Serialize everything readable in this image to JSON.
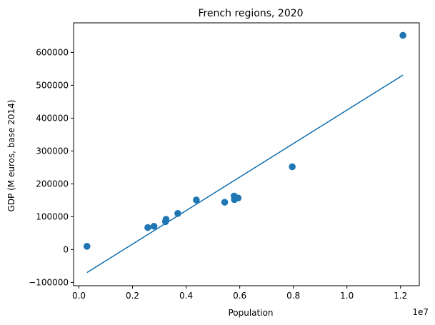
{
  "chart_data": {
    "type": "scatter",
    "title": "French regions, 2020",
    "xlabel": "Population",
    "ylabel": "GDP (M euros, base 2014)",
    "x_offset_label": "1e7",
    "x_scale_multiplier": 10000000,
    "xlim": [
      -200000,
      12700000
    ],
    "ylim": [
      -110000,
      690000
    ],
    "x_ticks": [
      0.0,
      0.2,
      0.4,
      0.6,
      0.8,
      1.0,
      1.2
    ],
    "x_tick_labels": [
      "0.0",
      "0.2",
      "0.4",
      "0.6",
      "0.8",
      "1.0",
      "1.2"
    ],
    "y_ticks": [
      -100000,
      0,
      100000,
      200000,
      300000,
      400000,
      500000,
      600000
    ],
    "y_tick_labels": [
      "−100000",
      "0",
      "100000",
      "200000",
      "300000",
      "400000",
      "500000",
      "600000"
    ],
    "grid": false,
    "series": [
      {
        "kind": "points",
        "color": "#1f77b4",
        "x": [
          300000,
          2570000,
          2800000,
          3230000,
          3250000,
          3690000,
          4380000,
          5440000,
          5790000,
          5800000,
          5940000,
          7960000,
          12090000
        ],
        "y": [
          10000,
          67000,
          71000,
          85000,
          92000,
          110000,
          151000,
          144000,
          163000,
          152000,
          157000,
          252000,
          652000
        ]
      },
      {
        "kind": "line",
        "color": "#1f77b4",
        "x": [
          300000,
          12090000
        ],
        "y": [
          -70000,
          531000
        ]
      }
    ]
  }
}
